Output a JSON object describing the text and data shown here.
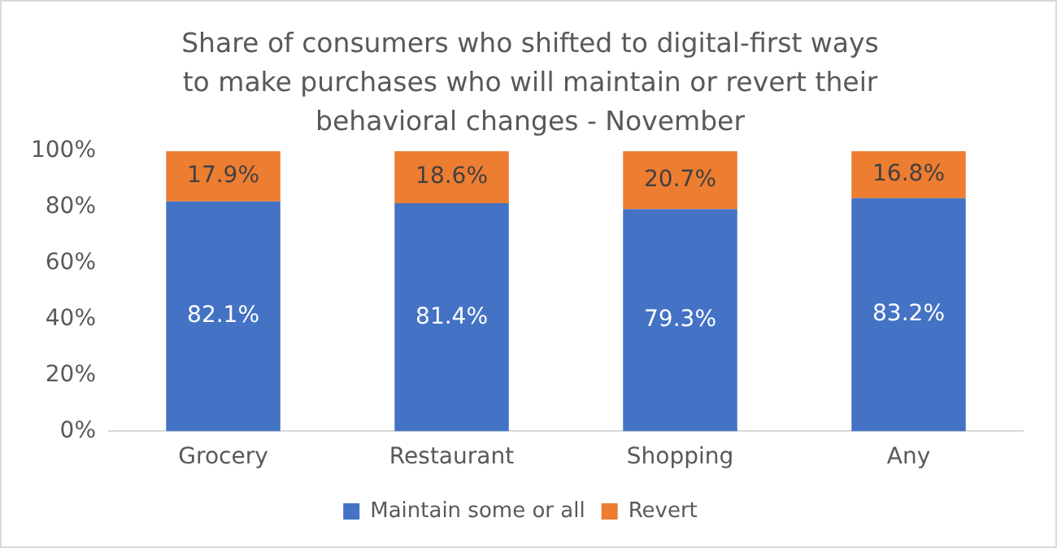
{
  "chart_data": {
    "type": "bar",
    "title": "Share of consumers who shifted to digital-first ways to make purchases who will maintain or revert their behavioral changes - November",
    "categories": [
      "Grocery",
      "Restaurant",
      "Shopping",
      "Any"
    ],
    "stacked": true,
    "series": [
      {
        "name": "Maintain some or all",
        "color": "#4472c4",
        "values": [
          82.1,
          81.4,
          79.3,
          83.2
        ],
        "value_labels": [
          "82.1%",
          "81.4%",
          "79.3%",
          "83.2%"
        ]
      },
      {
        "name": "Revert",
        "color": "#ed7d31",
        "values": [
          17.9,
          18.6,
          20.7,
          16.8
        ],
        "value_labels": [
          "17.9%",
          "18.6%",
          "20.7%",
          "16.8%"
        ]
      }
    ],
    "ylim": [
      0,
      100
    ],
    "yticks": [
      {
        "value": 0,
        "label": "0%"
      },
      {
        "value": 20,
        "label": "20%"
      },
      {
        "value": 40,
        "label": "40%"
      },
      {
        "value": 60,
        "label": "60%"
      },
      {
        "value": 80,
        "label": "80%"
      },
      {
        "value": 100,
        "label": "100%"
      }
    ],
    "grid": false,
    "legend": "bottom"
  }
}
